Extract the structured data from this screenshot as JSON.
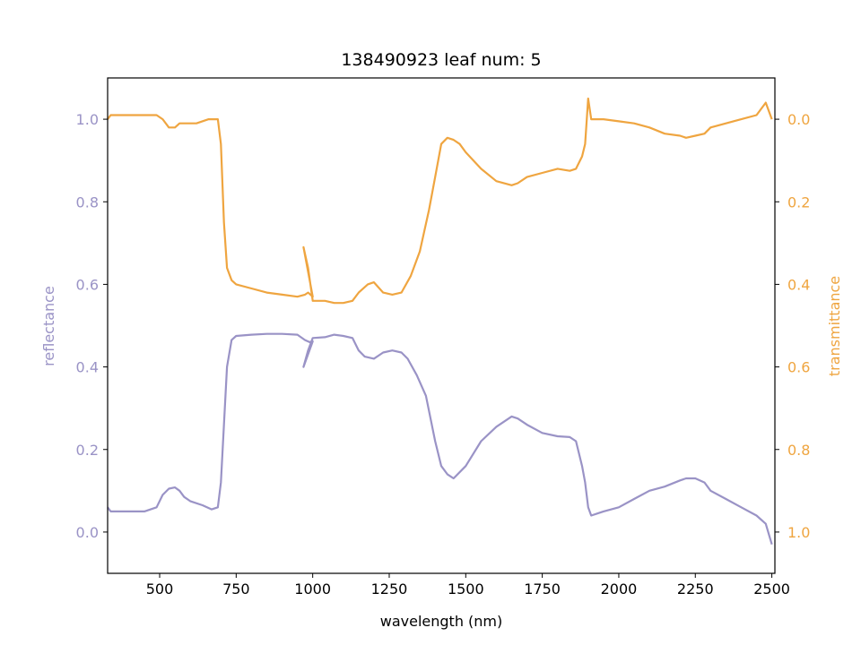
{
  "chart_data": {
    "type": "line",
    "title": "138490923 leaf num: 5",
    "xlabel": "wavelength (nm)",
    "ylabel": "reflectance",
    "y2label": "transmittance",
    "xlim": [
      330,
      2510
    ],
    "ylim": [
      -0.1,
      1.1
    ],
    "y2lim": [
      1.1,
      -0.1
    ],
    "x_ticks": [
      500,
      750,
      1000,
      1250,
      1500,
      1750,
      2000,
      2250,
      2500
    ],
    "y_ticks": [
      0.0,
      0.2,
      0.4,
      0.6,
      0.8,
      1.0
    ],
    "y2_ticks": [
      0.0,
      0.2,
      0.4,
      0.6,
      0.8,
      1.0
    ],
    "grid": false,
    "colors": {
      "reflectance": "#9a93c6",
      "transmittance": "#efa540"
    },
    "series": [
      {
        "name": "reflectance",
        "axis": "left",
        "x": [
          330,
          340,
          360,
          400,
          450,
          490,
          510,
          530,
          550,
          565,
          580,
          600,
          640,
          670,
          690,
          700,
          710,
          720,
          735,
          750,
          800,
          850,
          900,
          950,
          975,
          990,
          1000,
          970,
          985,
          1000,
          1040,
          1070,
          1100,
          1130,
          1150,
          1170,
          1200,
          1230,
          1260,
          1290,
          1310,
          1340,
          1370,
          1400,
          1420,
          1440,
          1460,
          1500,
          1550,
          1600,
          1650,
          1670,
          1700,
          1750,
          1800,
          1840,
          1860,
          1880,
          1890,
          1900,
          1910,
          1930,
          1950,
          2000,
          2050,
          2100,
          2150,
          2200,
          2220,
          2250,
          2280,
          2300,
          2350,
          2400,
          2450,
          2480,
          2500
        ],
        "values": [
          0.06,
          0.05,
          0.05,
          0.05,
          0.05,
          0.06,
          0.09,
          0.105,
          0.108,
          0.1,
          0.085,
          0.075,
          0.065,
          0.055,
          0.06,
          0.12,
          0.26,
          0.4,
          0.465,
          0.475,
          0.478,
          0.48,
          0.48,
          0.478,
          0.465,
          0.46,
          0.462,
          0.4,
          0.44,
          0.47,
          0.472,
          0.478,
          0.475,
          0.47,
          0.44,
          0.425,
          0.42,
          0.435,
          0.44,
          0.435,
          0.42,
          0.38,
          0.33,
          0.22,
          0.16,
          0.14,
          0.13,
          0.16,
          0.22,
          0.255,
          0.28,
          0.275,
          0.26,
          0.24,
          0.232,
          0.23,
          0.22,
          0.16,
          0.12,
          0.06,
          0.04,
          0.045,
          0.05,
          0.06,
          0.08,
          0.1,
          0.11,
          0.125,
          0.13,
          0.13,
          0.12,
          0.1,
          0.08,
          0.06,
          0.04,
          0.02,
          -0.03
        ]
      },
      {
        "name": "transmittance",
        "axis": "right",
        "x": [
          330,
          340,
          360,
          400,
          450,
          490,
          510,
          530,
          550,
          565,
          580,
          620,
          660,
          680,
          690,
          700,
          710,
          720,
          735,
          750,
          800,
          850,
          900,
          950,
          975,
          985,
          1000,
          970,
          985,
          1000,
          1040,
          1070,
          1100,
          1130,
          1150,
          1180,
          1200,
          1230,
          1260,
          1290,
          1320,
          1350,
          1380,
          1400,
          1420,
          1440,
          1460,
          1480,
          1500,
          1550,
          1600,
          1650,
          1670,
          1700,
          1750,
          1800,
          1840,
          1860,
          1880,
          1890,
          1900,
          1910,
          1930,
          1950,
          2000,
          2050,
          2100,
          2150,
          2200,
          2220,
          2250,
          2280,
          2300,
          2350,
          2400,
          2450,
          2480,
          2500
        ],
        "values": [
          0.0,
          -0.01,
          -0.01,
          -0.01,
          -0.01,
          -0.01,
          0.0,
          0.02,
          0.02,
          0.01,
          0.01,
          0.01,
          0.0,
          0.0,
          0.0,
          0.06,
          0.25,
          0.36,
          0.39,
          0.4,
          0.41,
          0.42,
          0.425,
          0.43,
          0.425,
          0.42,
          0.43,
          0.31,
          0.36,
          0.44,
          0.44,
          0.445,
          0.445,
          0.44,
          0.42,
          0.4,
          0.395,
          0.42,
          0.425,
          0.42,
          0.38,
          0.32,
          0.22,
          0.14,
          0.06,
          0.045,
          0.05,
          0.06,
          0.08,
          0.12,
          0.15,
          0.16,
          0.155,
          0.14,
          0.13,
          0.12,
          0.125,
          0.12,
          0.09,
          0.06,
          -0.05,
          0.0,
          0.0,
          0.0,
          0.005,
          0.01,
          0.02,
          0.035,
          0.04,
          0.045,
          0.04,
          0.035,
          0.02,
          0.01,
          0.0,
          -0.01,
          -0.04,
          0.0
        ]
      }
    ]
  }
}
